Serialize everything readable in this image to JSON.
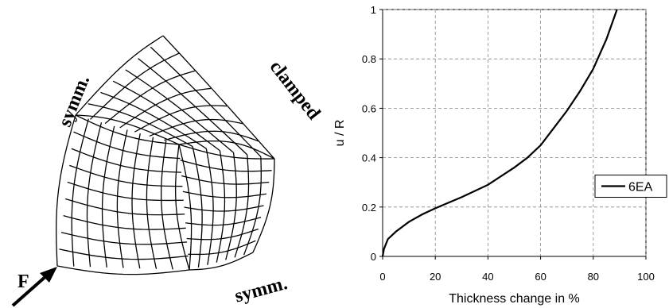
{
  "diagram": {
    "labels": [
      "symm.",
      "clamped",
      "symm.",
      "F"
    ]
  },
  "chart_data": {
    "type": "line",
    "x_label": "Thickness change in %",
    "y_label": "u / R",
    "xlim": [
      0,
      100
    ],
    "xticks": [
      0,
      20,
      40,
      60,
      80,
      100
    ],
    "ylim": [
      0,
      1
    ],
    "yticks": [
      0,
      0.2,
      0.4,
      0.6,
      0.8,
      1
    ],
    "grid": true,
    "legend": "right",
    "series": [
      {
        "name": "6EA",
        "color": "#000000",
        "x": [
          0,
          0.5,
          2,
          5,
          10,
          15,
          20,
          30,
          40,
          50,
          55,
          60,
          65,
          70,
          75,
          80,
          85,
          88,
          89
        ],
        "values": [
          0,
          0.03,
          0.07,
          0.1,
          0.14,
          0.17,
          0.195,
          0.24,
          0.29,
          0.36,
          0.4,
          0.45,
          0.52,
          0.59,
          0.67,
          0.76,
          0.88,
          0.97,
          1.0
        ]
      }
    ]
  }
}
